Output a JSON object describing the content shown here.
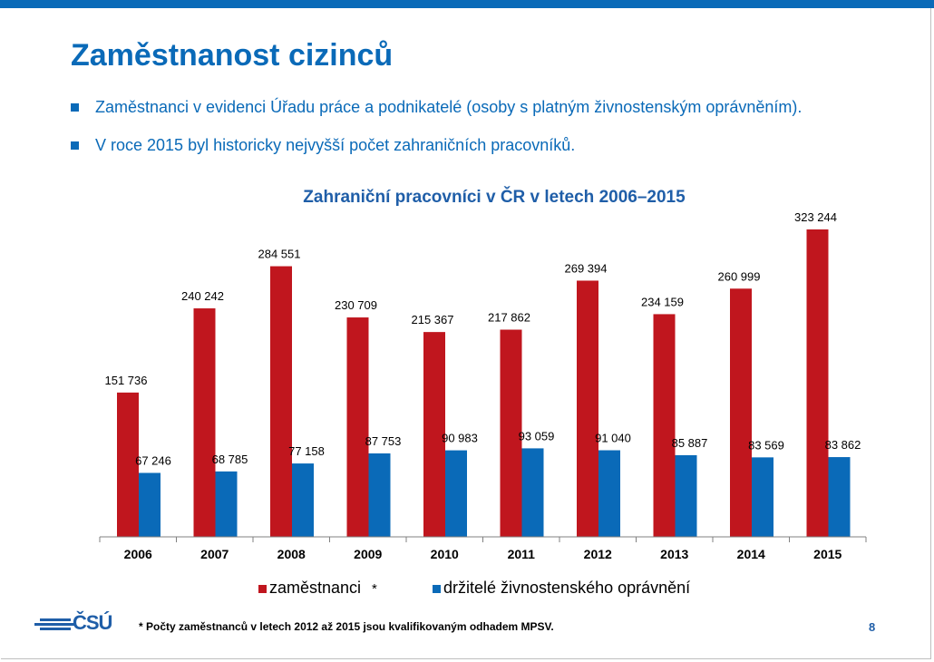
{
  "slide": {
    "title": "Zaměstnanost cizinců",
    "bullets": [
      "Zaměstnanci v evidenci Úřadu práce a podnikatelé (osoby s platným živnostenským oprávněním).",
      "V roce 2015 byl historicky nejvyšší počet zahraničních  pracovníků."
    ],
    "logo_text": "ČSÚ",
    "footnote": "* Počty zaměstnanců v letech 2012 až 2015 jsou kvalifikovaným odhadem MPSV.",
    "page_number": "8",
    "legend_star": "*"
  },
  "chart_data": {
    "type": "bar",
    "title": "Zahraniční  pracovníci  v ČR v letech 2006–2015",
    "categories": [
      "2006",
      "2007",
      "2008",
      "2009",
      "2010",
      "2011",
      "2012",
      "2013",
      "2014",
      "2015"
    ],
    "series": [
      {
        "name": "zaměstnanci",
        "color": "#c0161e",
        "values": [
          151736,
          240242,
          284551,
          230709,
          215367,
          217862,
          269394,
          234159,
          260999,
          323244
        ],
        "labels": [
          "151 736",
          "240 242",
          "284 551",
          "230 709",
          "215 367",
          "217 862",
          "269 394",
          "234 159",
          "260 999",
          "323 244"
        ]
      },
      {
        "name": "držitelé živnostenského oprávnění",
        "color": "#0a6ab8",
        "values": [
          67246,
          68785,
          77158,
          87753,
          90983,
          93059,
          91040,
          85887,
          83569,
          83862
        ],
        "labels": [
          "67 246",
          "68 785",
          "77 158",
          "87 753",
          "90 983",
          "93 059",
          "91 040",
          "85 887",
          "83 569",
          "83 862"
        ]
      }
    ],
    "legend_position": "bottom",
    "grid": false,
    "ylim": [
      0,
      330000
    ]
  }
}
